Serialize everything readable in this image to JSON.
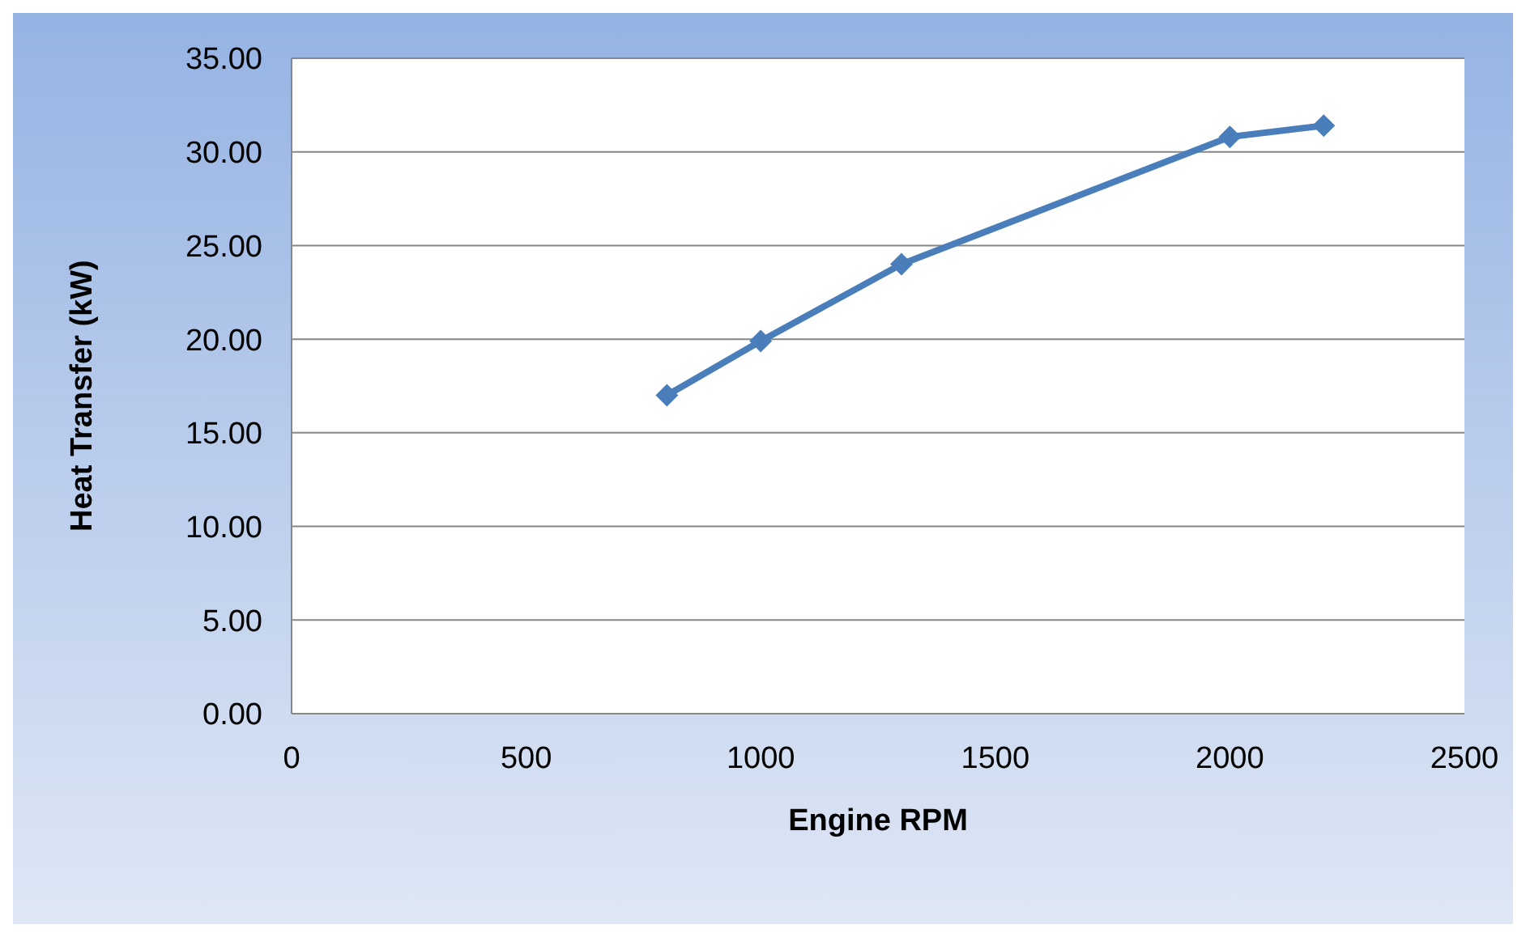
{
  "chart_data": {
    "type": "line",
    "xlabel": "Engine RPM",
    "ylabel": "Heat Transfer (kW)",
    "x": [
      800,
      1000,
      1300,
      2000,
      2200
    ],
    "series": [
      {
        "color": "#4a7ebb",
        "values": [
          17.0,
          19.9,
          24.0,
          30.8,
          31.4
        ]
      }
    ],
    "xlim": [
      0,
      2500
    ],
    "xticks": [
      0,
      500,
      1000,
      1500,
      2000,
      2500
    ],
    "ylim": [
      0,
      35
    ],
    "yticks": [
      {
        "value": 0,
        "label": "0.00"
      },
      {
        "value": 5,
        "label": "5.00"
      },
      {
        "value": 10,
        "label": "10.00"
      },
      {
        "value": 15,
        "label": "15.00"
      },
      {
        "value": 20,
        "label": "20.00"
      },
      {
        "value": 25,
        "label": "25.00"
      },
      {
        "value": 30,
        "label": "30.00"
      },
      {
        "value": 35,
        "label": "35.00"
      }
    ],
    "grid": "y",
    "marker": "diamond",
    "line_style": "solid"
  }
}
